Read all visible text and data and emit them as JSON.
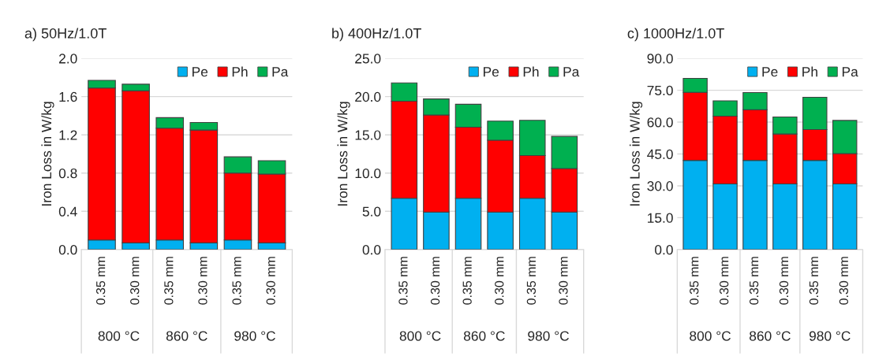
{
  "chart_data": [
    {
      "type": "bar",
      "stacked": true,
      "title": "a) 50Hz/1.0T",
      "ylabel": "Iron Loss in W/kg",
      "categories": [
        "0.35 mm",
        "0.30 mm",
        "0.35 mm",
        "0.30 mm",
        "0.35 mm",
        "0.30 mm"
      ],
      "annotations": [
        "800 °C",
        "860 °C",
        "980 °C"
      ],
      "series": [
        {
          "name": "Pe",
          "color": "#00b0f0",
          "values": [
            0.1,
            0.07,
            0.1,
            0.07,
            0.1,
            0.07
          ]
        },
        {
          "name": "Ph",
          "color": "#ff0000",
          "values": [
            1.59,
            1.59,
            1.17,
            1.18,
            0.7,
            0.72
          ]
        },
        {
          "name": "Pa",
          "color": "#00b050",
          "values": [
            0.08,
            0.07,
            0.11,
            0.08,
            0.17,
            0.14
          ]
        }
      ],
      "ylim": [
        0,
        2
      ],
      "yticks": [
        {
          "value": 0,
          "label": "0.0"
        },
        0.4,
        0.8,
        1.2,
        1.6,
        {
          "value": 2,
          "label": "2.0"
        }
      ],
      "grid": "y",
      "legend": "top right"
    },
    {
      "type": "bar",
      "stacked": true,
      "title": "b) 400Hz/1.0T",
      "ylabel": "Iron Loss in W/kg",
      "categories": [
        "0.35 mm",
        "0.30 mm",
        "0.35 mm",
        "0.30 mm",
        "0.35 mm",
        "0.30 mm"
      ],
      "annotations": [
        "800 °C",
        "860 °C",
        "980 °C"
      ],
      "series": [
        {
          "name": "Pe",
          "color": "#00b0f0",
          "values": [
            6.7,
            4.9,
            6.7,
            4.9,
            6.7,
            4.9
          ]
        },
        {
          "name": "Ph",
          "color": "#ff0000",
          "values": [
            12.7,
            12.7,
            9.3,
            9.4,
            5.6,
            5.7
          ]
        },
        {
          "name": "Pa",
          "color": "#00b050",
          "values": [
            2.4,
            2.1,
            3.0,
            2.5,
            4.6,
            4.2
          ]
        }
      ],
      "ylim": [
        0,
        25
      ],
      "yticks": [
        {
          "value": 0,
          "label": "0.0"
        },
        {
          "value": 5,
          "label": "5.0"
        },
        {
          "value": 10,
          "label": "10.0"
        },
        {
          "value": 15,
          "label": "15.0"
        },
        {
          "value": 20,
          "label": "20.0"
        },
        {
          "value": 25,
          "label": "25.0"
        }
      ],
      "grid": "y",
      "legend": "top right"
    },
    {
      "type": "bar",
      "stacked": true,
      "title": "c) 1000Hz/1.0T",
      "ylabel": "Iron Loss in W/kg",
      "categories": [
        "0.35 mm",
        "0.30 mm",
        "0.35 mm",
        "0.30 mm",
        "0.35 mm",
        "0.30 mm"
      ],
      "annotations": [
        "800 °C",
        "860 °C",
        "980 °C"
      ],
      "series": [
        {
          "name": "Pe",
          "color": "#00b0f0",
          "values": [
            42.0,
            30.9,
            42.0,
            30.9,
            42.0,
            30.9
          ]
        },
        {
          "name": "Ph",
          "color": "#ff0000",
          "values": [
            32.0,
            31.9,
            23.8,
            23.5,
            14.5,
            14.3
          ]
        },
        {
          "name": "Pa",
          "color": "#00b050",
          "values": [
            6.6,
            7.2,
            8.1,
            8.0,
            15.2,
            15.6
          ]
        }
      ],
      "ylim": [
        0,
        90
      ],
      "yticks": [
        {
          "value": 0,
          "label": "0.0"
        },
        {
          "value": 15,
          "label": "15.0"
        },
        {
          "value": 30,
          "label": "30.0"
        },
        {
          "value": 45,
          "label": "45.0"
        },
        {
          "value": 60,
          "label": "60.0"
        },
        {
          "value": 75,
          "label": "75.0"
        },
        {
          "value": 90,
          "label": "90.0"
        }
      ],
      "grid": "y",
      "legend": "top right"
    }
  ]
}
